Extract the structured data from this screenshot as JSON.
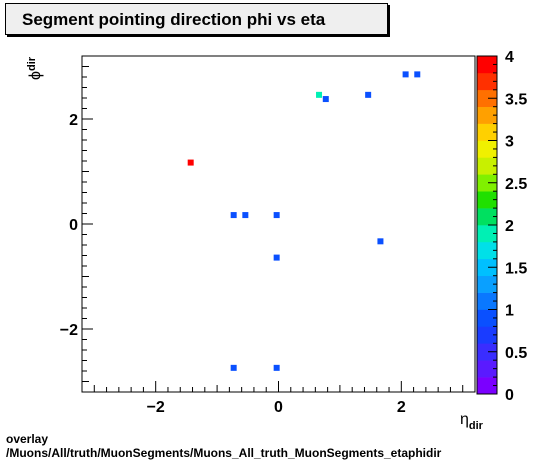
{
  "chart_data": {
    "type": "heatmap",
    "title": "Segment pointing direction phi vs eta",
    "xlabel_main": "η",
    "xlabel_sub": "dir",
    "ylabel_main": "ϕ",
    "ylabel_sub": "dir",
    "xlim": [
      -3.2,
      3.2
    ],
    "ylim": [
      -3.2,
      3.2
    ],
    "x_ticks": [
      -2,
      0,
      2
    ],
    "x_tick_labels": [
      "−2",
      "0",
      "2"
    ],
    "y_ticks": [
      -2,
      0,
      2
    ],
    "y_tick_labels": [
      "−2",
      "0",
      "2"
    ],
    "zlim": [
      0,
      4
    ],
    "z_ticks": [
      0,
      0.5,
      1,
      1.5,
      2,
      2.5,
      3,
      3.5,
      4
    ],
    "z_tick_labels": [
      "0",
      "0.5",
      "1",
      "1.5",
      "2",
      "2.5",
      "3",
      "3.5",
      "4"
    ],
    "grid": false,
    "points": [
      {
        "x": 2.07,
        "y": 2.85,
        "z": 1
      },
      {
        "x": 2.26,
        "y": 2.85,
        "z": 1
      },
      {
        "x": 0.66,
        "y": 2.46,
        "z": 2
      },
      {
        "x": 0.77,
        "y": 2.38,
        "z": 1
      },
      {
        "x": 1.46,
        "y": 2.46,
        "z": 1
      },
      {
        "x": -1.43,
        "y": 1.17,
        "z": 4
      },
      {
        "x": -0.73,
        "y": 0.17,
        "z": 1
      },
      {
        "x": -0.54,
        "y": 0.17,
        "z": 1
      },
      {
        "x": -0.03,
        "y": 0.17,
        "z": 1
      },
      {
        "x": 1.66,
        "y": -0.33,
        "z": 1
      },
      {
        "x": -0.03,
        "y": -0.64,
        "z": 1
      },
      {
        "x": -0.73,
        "y": -2.74,
        "z": 1
      },
      {
        "x": -0.03,
        "y": -2.74,
        "z": 1
      }
    ]
  },
  "footer": {
    "line1": "overlay",
    "line2": "/Muons/All/truth/MuonSegments/Muons_All_truth_MuonSegments_etaphidir"
  }
}
